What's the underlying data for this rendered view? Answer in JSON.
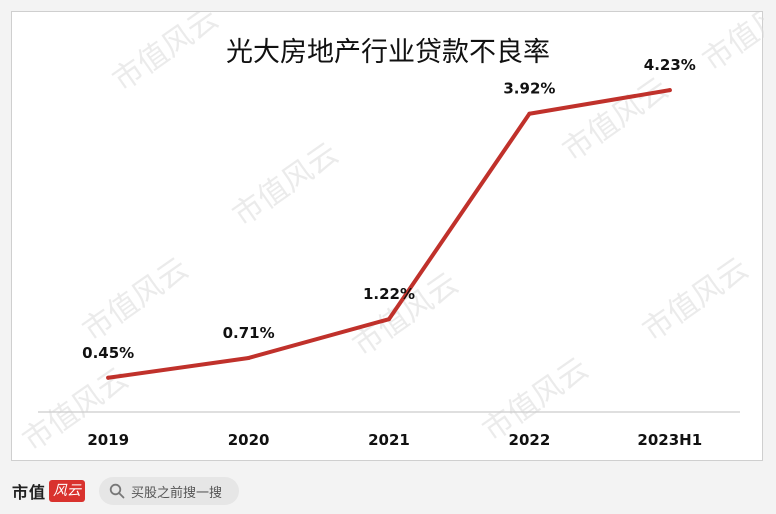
{
  "chart_data": {
    "type": "line",
    "title": "光大房地产行业贷款不良率",
    "categories": [
      "2019",
      "2020",
      "2021",
      "2022",
      "2023H1"
    ],
    "series": [
      {
        "values": [
          0.45,
          0.71,
          1.22,
          3.92,
          4.23
        ],
        "labels": [
          "0.45%",
          "0.71%",
          "1.22%",
          "3.92%",
          "4.23%"
        ],
        "color": "#c0312b"
      }
    ],
    "xlabel": "",
    "ylabel": "",
    "ylim": [
      0,
      4.6
    ],
    "grid": false,
    "legend": "none",
    "axis_color": "#cccccc"
  },
  "watermark": {
    "text": "市值风云"
  },
  "footer": {
    "brand": "市值",
    "brand_badge": "风云",
    "search_icon": "search-icon",
    "search_text": "买股之前搜一搜"
  }
}
